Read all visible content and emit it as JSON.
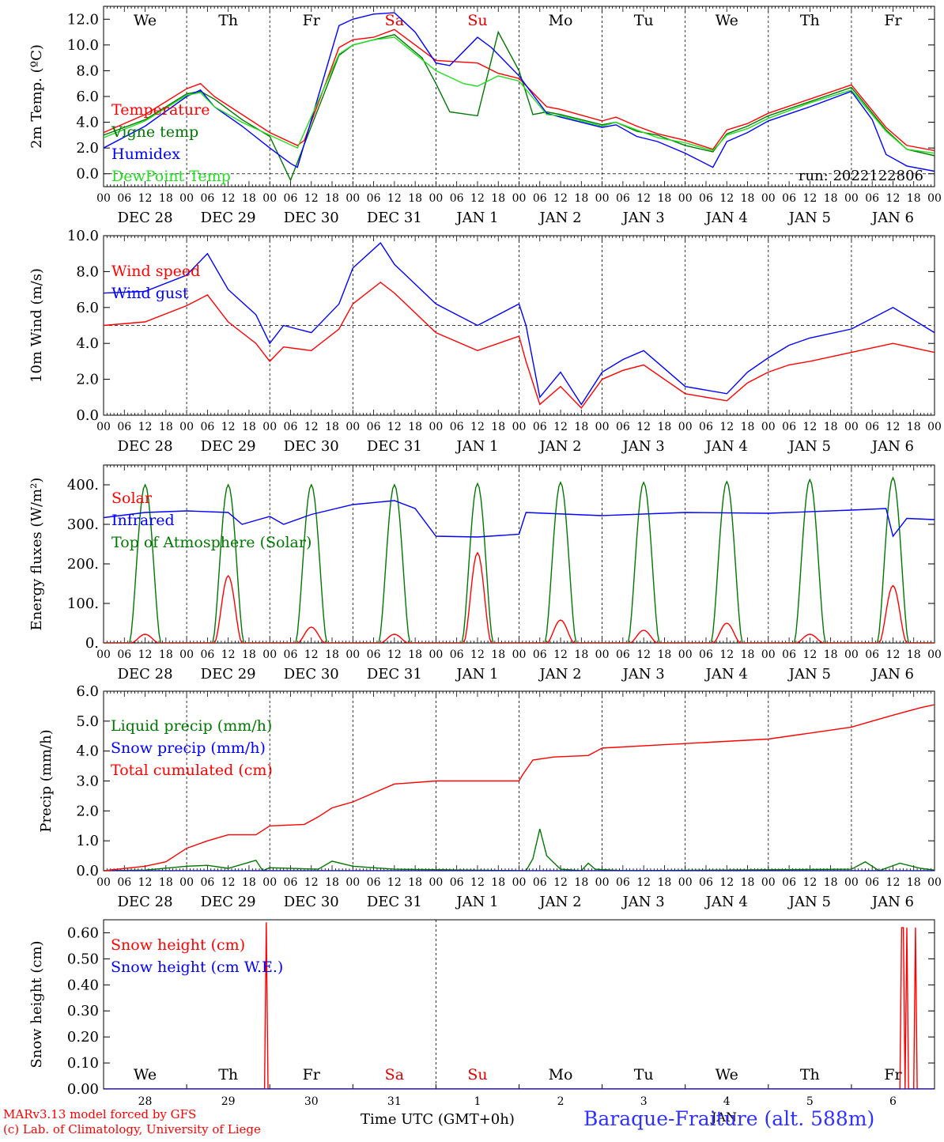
{
  "run_label": "run: 2022122806",
  "footer": {
    "model_line": "MARv3.13 model forced by GFS",
    "lab_line": "(c) Lab. of Climatology, University of Liege",
    "xaxis_label": "Time UTC (GMT+0h)",
    "jan_label": "JAN",
    "station": "Baraque-Fraiture (alt. 588m)"
  },
  "days": [
    "We",
    "Th",
    "Fr",
    "Sa",
    "Su",
    "Mo",
    "Tu",
    "We",
    "Th",
    "Fr"
  ],
  "day_colors": [
    "#000000",
    "#000000",
    "#000000",
    "#e00000",
    "#e00000",
    "#000000",
    "#000000",
    "#000000",
    "#000000",
    "#000000"
  ],
  "date_labels": [
    "DEC 28",
    "DEC 29",
    "DEC 30",
    "DEC 31",
    "JAN  1",
    "JAN  2",
    "JAN  3",
    "JAN  4",
    "JAN  5",
    "JAN  6"
  ],
  "day_numbers": [
    "28",
    "29",
    "30",
    "31",
    "1",
    "2",
    "3",
    "4",
    "5",
    "6"
  ],
  "hour_ticks": [
    "00",
    "06",
    "12",
    "18"
  ],
  "final_tick": "00",
  "chart_data": [
    {
      "type": "line",
      "ylabel": "2m Temp. (ºC)",
      "ylim": [
        -1.0,
        13.0
      ],
      "yticks": [
        "0.0",
        "2.0",
        "4.0",
        "6.0",
        "8.0",
        "10.0",
        "12.0"
      ],
      "yvalues": [
        0,
        2,
        4,
        6,
        8,
        10,
        12
      ],
      "x_unit": "hours since DEC 28 00 UTC",
      "hline": 0,
      "series": [
        {
          "name": "Temperature",
          "color": "#ff0000",
          "x": [
            0,
            12,
            24,
            28,
            32,
            48,
            56,
            58,
            68,
            72,
            78,
            84,
            96,
            108,
            114,
            120,
            128,
            132,
            144,
            148,
            154,
            160,
            168,
            176,
            180,
            186,
            192,
            204,
            216,
            226,
            232,
            240
          ],
          "values": [
            3.2,
            4.6,
            6.6,
            7.0,
            6.0,
            3.2,
            2.2,
            2.6,
            9.8,
            10.4,
            10.6,
            11.2,
            8.8,
            8.6,
            7.8,
            7.4,
            5.2,
            5.0,
            4.1,
            4.4,
            3.7,
            3.1,
            2.6,
            1.9,
            3.4,
            3.9,
            4.7,
            5.8,
            6.9,
            3.6,
            2.2,
            1.8
          ]
        },
        {
          "name": "Vigne temp",
          "color": "#007700",
          "x": [
            0,
            12,
            24,
            28,
            32,
            40,
            48,
            54,
            58,
            68,
            72,
            78,
            84,
            92,
            96,
            100,
            108,
            114,
            120,
            124,
            128,
            132,
            144,
            148,
            154,
            160,
            168,
            176,
            180,
            186,
            192,
            204,
            216,
            226,
            232,
            240
          ],
          "values": [
            3.0,
            4.2,
            6.2,
            6.4,
            5.8,
            4.2,
            2.9,
            -0.5,
            2.3,
            9.2,
            10.0,
            10.4,
            10.8,
            9.0,
            7.0,
            4.8,
            4.5,
            11.0,
            8.0,
            4.6,
            4.8,
            4.6,
            3.8,
            4.0,
            3.3,
            3.0,
            2.2,
            1.7,
            3.1,
            3.7,
            4.5,
            5.6,
            6.7,
            3.4,
            1.9,
            1.4
          ]
        },
        {
          "name": "Humidex",
          "color": "#0000ff",
          "x": [
            0,
            12,
            24,
            28,
            32,
            40,
            48,
            54,
            56,
            62,
            68,
            72,
            78,
            84,
            90,
            96,
            100,
            108,
            112,
            120,
            128,
            132,
            144,
            148,
            154,
            160,
            168,
            176,
            180,
            186,
            192,
            204,
            216,
            222,
            226,
            232,
            240
          ],
          "values": [
            2.0,
            3.7,
            6.0,
            6.5,
            5.2,
            3.7,
            2.0,
            0.8,
            0.5,
            6.0,
            11.5,
            12.0,
            12.4,
            12.5,
            11.0,
            8.6,
            8.4,
            10.6,
            9.8,
            7.6,
            4.7,
            4.4,
            3.6,
            3.8,
            2.9,
            2.5,
            1.6,
            0.5,
            2.5,
            3.2,
            4.1,
            5.2,
            6.4,
            4.2,
            1.5,
            0.6,
            0.2
          ]
        },
        {
          "name": "DewPoint Temp",
          "color": "#22dd22",
          "x": [
            0,
            12,
            24,
            28,
            32,
            40,
            48,
            56,
            68,
            72,
            78,
            84,
            96,
            104,
            108,
            114,
            120,
            128,
            132,
            144,
            148,
            154,
            160,
            168,
            176,
            180,
            186,
            192,
            204,
            216,
            226,
            232,
            240
          ],
          "values": [
            2.8,
            4.1,
            6.1,
            6.3,
            5.2,
            4.0,
            3.0,
            2.0,
            9.3,
            10.0,
            10.4,
            10.6,
            8.0,
            7.0,
            6.8,
            7.6,
            7.2,
            4.6,
            4.5,
            3.7,
            4.0,
            3.4,
            2.8,
            2.4,
            1.8,
            3.0,
            3.5,
            4.3,
            5.5,
            6.5,
            3.3,
            1.9,
            1.6
          ]
        }
      ]
    },
    {
      "type": "line",
      "ylabel": "10m Wind (m/s)",
      "ylim": [
        0.0,
        10.0
      ],
      "yticks": [
        "0.0",
        "2.0",
        "4.0",
        "6.0",
        "8.0",
        "10.0"
      ],
      "yvalues": [
        0,
        2,
        4,
        6,
        8,
        10
      ],
      "x_unit": "hours since DEC 28 00 UTC",
      "hline": 5,
      "series": [
        {
          "name": "Wind speed",
          "color": "#ff0000",
          "x": [
            0,
            12,
            24,
            30,
            36,
            44,
            48,
            52,
            60,
            68,
            72,
            80,
            84,
            96,
            108,
            120,
            122,
            126,
            132,
            138,
            144,
            150,
            156,
            168,
            180,
            186,
            192,
            198,
            204,
            216,
            228,
            240
          ],
          "values": [
            5.0,
            5.2,
            6.1,
            6.7,
            5.2,
            4.0,
            3.0,
            3.8,
            3.6,
            4.8,
            6.2,
            7.4,
            6.8,
            4.6,
            3.6,
            4.4,
            3.0,
            0.6,
            1.6,
            0.4,
            2.0,
            2.5,
            2.8,
            1.2,
            0.8,
            1.8,
            2.4,
            2.8,
            3.0,
            3.5,
            4.0,
            3.5
          ]
        },
        {
          "name": "Wind gust",
          "color": "#0000ff",
          "x": [
            0,
            12,
            24,
            30,
            36,
            44,
            48,
            52,
            60,
            68,
            72,
            80,
            84,
            96,
            108,
            120,
            122,
            126,
            132,
            138,
            144,
            150,
            156,
            168,
            180,
            186,
            192,
            198,
            204,
            216,
            228,
            240
          ],
          "values": [
            6.8,
            6.9,
            7.8,
            9.0,
            7.0,
            5.6,
            4.0,
            5.0,
            4.6,
            6.2,
            8.2,
            9.6,
            8.4,
            6.2,
            5.0,
            6.2,
            5.0,
            1.0,
            2.4,
            0.6,
            2.4,
            3.1,
            3.6,
            1.6,
            1.2,
            2.4,
            3.2,
            3.9,
            4.3,
            4.8,
            6.0,
            4.6
          ]
        }
      ]
    },
    {
      "type": "line",
      "ylabel": "Energy fluxes (W/m²)",
      "ylim": [
        0.0,
        450.0
      ],
      "yticks": [
        "0.",
        "100.",
        "200.",
        "300.",
        "400."
      ],
      "yvalues": [
        0,
        100,
        200,
        300,
        400
      ],
      "x_unit": "hours since DEC 28 00 UTC",
      "daily_peaks": {
        "solar_noon_hour": 12,
        "toa_peak": [
          400,
          400,
          400,
          400,
          403,
          406,
          406,
          408,
          413,
          418
        ],
        "solar_peak": [
          22,
          170,
          40,
          22,
          228,
          58,
          32,
          50,
          22,
          145
        ]
      },
      "series": [
        {
          "name": "Solar",
          "color": "#ff0000"
        },
        {
          "name": "Infrared",
          "color": "#0000ff",
          "x": [
            0,
            12,
            24,
            36,
            40,
            48,
            52,
            60,
            72,
            84,
            90,
            96,
            108,
            120,
            122,
            144,
            168,
            192,
            216,
            226,
            228,
            232,
            240
          ],
          "values": [
            317,
            330,
            334,
            330,
            300,
            320,
            300,
            325,
            350,
            360,
            340,
            270,
            268,
            275,
            330,
            322,
            330,
            328,
            336,
            340,
            270,
            315,
            312
          ]
        },
        {
          "name": "Top of Atmosphere (Solar)",
          "color": "#007700"
        }
      ]
    },
    {
      "type": "line",
      "ylabel": "Precip (mm/h)",
      "ylim": [
        0.0,
        6.0
      ],
      "yticks": [
        "0.0",
        "1.0",
        "2.0",
        "3.0",
        "4.0",
        "5.0",
        "6.0"
      ],
      "yvalues": [
        0,
        1,
        2,
        3,
        4,
        5,
        6
      ],
      "x_unit": "hours since DEC 28 00 UTC",
      "series": [
        {
          "name": "Liquid precip (mm/h)",
          "color": "#007700",
          "x": [
            0,
            12,
            24,
            30,
            36,
            44,
            46,
            48,
            62,
            66,
            72,
            84,
            120,
            122,
            124,
            126,
            128,
            132,
            138,
            140,
            142,
            150,
            216,
            220,
            224,
            230,
            236,
            240
          ],
          "values": [
            0,
            0.02,
            0.15,
            0.18,
            0.08,
            0.35,
            0.0,
            0.1,
            0.05,
            0.32,
            0.15,
            0.05,
            0.0,
            0.0,
            0.4,
            1.4,
            0.5,
            0.05,
            0.0,
            0.25,
            0.05,
            0.0,
            0.05,
            0.3,
            0.0,
            0.25,
            0.08,
            0.02
          ]
        },
        {
          "name": "Snow precip (mm/h)",
          "color": "#0000ff",
          "x": [
            0,
            240
          ],
          "values": [
            0,
            0
          ]
        },
        {
          "name": "Total cumulated (cm)",
          "color": "#ff0000",
          "x": [
            0,
            12,
            18,
            24,
            30,
            36,
            44,
            48,
            58,
            62,
            66,
            72,
            80,
            84,
            96,
            120,
            121,
            124,
            130,
            140,
            144,
            160,
            192,
            216,
            222,
            228,
            236,
            240
          ],
          "values": [
            0.0,
            0.15,
            0.3,
            0.75,
            1.0,
            1.2,
            1.2,
            1.5,
            1.55,
            1.8,
            2.1,
            2.3,
            2.7,
            2.9,
            3.0,
            3.0,
            3.2,
            3.7,
            3.8,
            3.85,
            4.1,
            4.2,
            4.4,
            4.8,
            5.0,
            5.2,
            5.45,
            5.55
          ]
        }
      ]
    },
    {
      "type": "line",
      "ylabel": "Snow height (cm)",
      "ylim": [
        0.0,
        0.65
      ],
      "yticks": [
        "0.00",
        "0.10",
        "0.20",
        "0.30",
        "0.40",
        "0.50",
        "0.60"
      ],
      "yvalues": [
        0,
        0.1,
        0.2,
        0.3,
        0.4,
        0.5,
        0.6
      ],
      "x_unit": "hours since DEC 28 00 UTC",
      "series": [
        {
          "name": "Snow height (cm)",
          "color": "#ff0000",
          "x": [
            0,
            46.5,
            47,
            47.5,
            230,
            230.5,
            231,
            231.5,
            232,
            232.5,
            234,
            234.5,
            235,
            240
          ],
          "values": [
            0,
            0,
            0.64,
            0,
            0,
            0.62,
            0.62,
            0,
            0.62,
            0,
            0,
            0.62,
            0,
            0
          ]
        },
        {
          "name": "Snow height (cm W.E.)",
          "color": "#0000ff",
          "x": [
            0,
            240
          ],
          "values": [
            0,
            0
          ]
        }
      ]
    }
  ]
}
